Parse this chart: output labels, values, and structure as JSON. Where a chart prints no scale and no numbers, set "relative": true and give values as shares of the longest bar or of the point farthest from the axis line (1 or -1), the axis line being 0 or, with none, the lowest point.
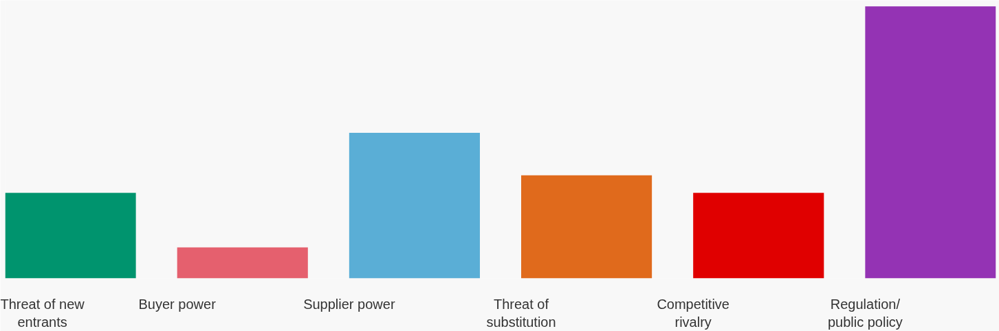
{
  "chart_data": {
    "type": "bar",
    "relative": true,
    "categories": [
      "Threat of new entrants",
      "Buyer power",
      "Supplier power",
      "Threat of substitution",
      "Competitive rivalry",
      "Regulation/ public policy"
    ],
    "values": [
      0.314,
      0.114,
      0.535,
      0.379,
      0.314,
      1.0
    ],
    "colors": [
      "#00946e",
      "#e5606e",
      "#5aaed6",
      "#e06a1c",
      "#e00000",
      "#9433b4"
    ],
    "grid": false
  }
}
